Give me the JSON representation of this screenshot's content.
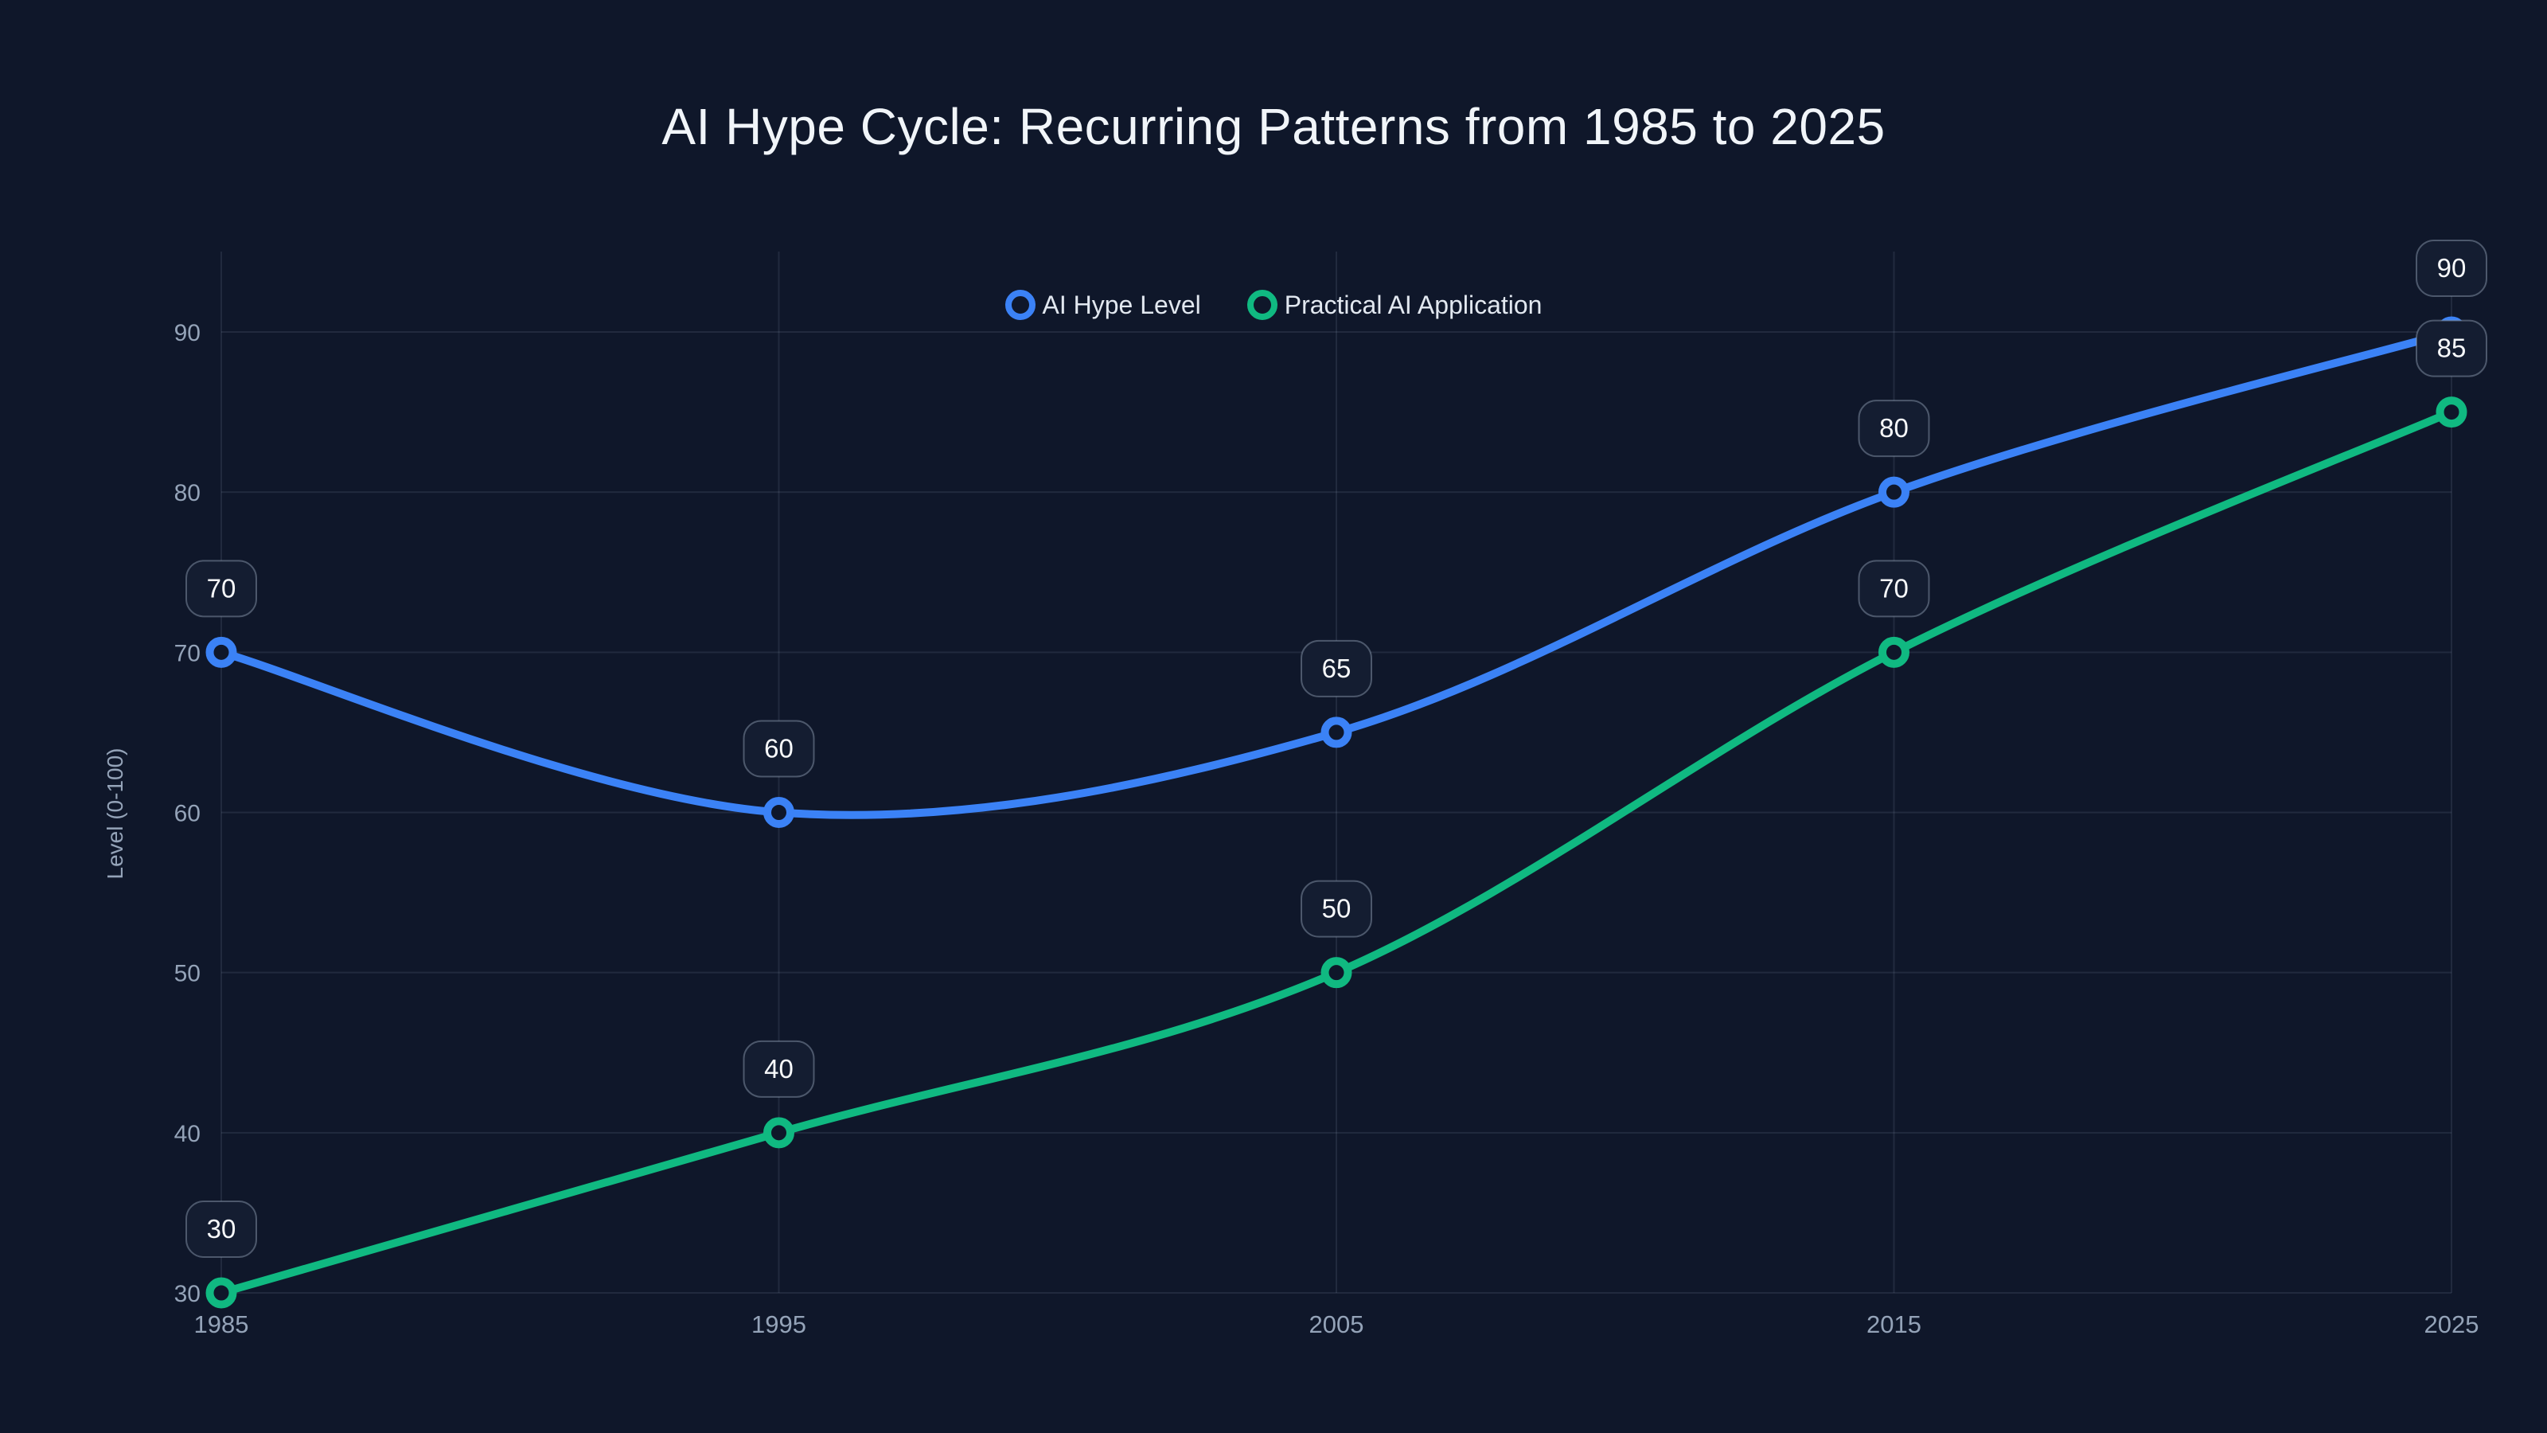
{
  "page": {
    "background": "#0f172a"
  },
  "theme": {
    "background": "#0f172a",
    "title_color": "#f1f5f9",
    "tick_color": "#94a3b8",
    "grid_color": "rgba(148,163,184,0.14)",
    "legend_text_color": "#e2e8f0",
    "point_label_text_color": "#f8fafc",
    "point_label_fill": "#141d31",
    "point_label_border": "rgba(148,163,184,0.45)",
    "series_blue": "#3b82f6",
    "series_green": "#10b981"
  },
  "chart_data": {
    "type": "line",
    "title": "AI Hype Cycle: Recurring Patterns from 1985 to 2025",
    "xlabel": "",
    "ylabel": "Level (0-100)",
    "categories": [
      "1985",
      "1995",
      "2005",
      "2015",
      "2025"
    ],
    "yticks": [
      30,
      40,
      50,
      60,
      70,
      80,
      90
    ],
    "ylim": [
      30,
      90
    ],
    "grid": true,
    "smooth": true,
    "markers": "open-circle",
    "point_labels_visible": true,
    "legend_position": "top-center",
    "series": [
      {
        "name": "AI Hype Level",
        "color": "#3b82f6",
        "values": [
          70,
          60,
          65,
          80,
          90
        ]
      },
      {
        "name": "Practical AI Application",
        "color": "#10b981",
        "values": [
          30,
          40,
          50,
          70,
          85
        ]
      }
    ]
  }
}
